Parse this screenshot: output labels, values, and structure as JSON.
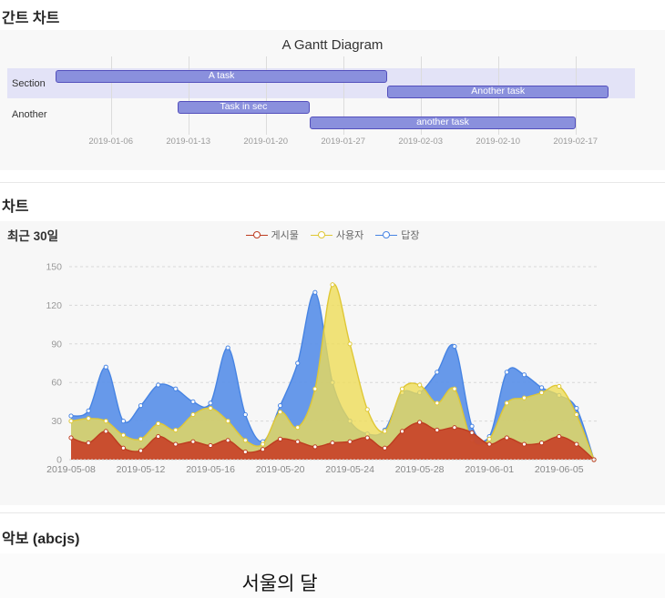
{
  "sections": {
    "gantt": {
      "heading": "간트 차트"
    },
    "chart": {
      "heading": "차트"
    },
    "sheet": {
      "heading": "악보 (abcjs)",
      "title": "서울의 달"
    }
  },
  "chart_data": [
    {
      "type": "gantt",
      "title": "A Gantt Diagram",
      "start_date": "2019-01-01",
      "axis_ticks": [
        {
          "label": "2019-01-06",
          "day": 5
        },
        {
          "label": "2019-01-13",
          "day": 12
        },
        {
          "label": "2019-01-20",
          "day": 19
        },
        {
          "label": "2019-01-27",
          "day": 26
        },
        {
          "label": "2019-02-03",
          "day": 33
        },
        {
          "label": "2019-02-10",
          "day": 40
        },
        {
          "label": "2019-02-17",
          "day": 47
        }
      ],
      "sections": [
        {
          "label": "Section",
          "tasks": [
            {
              "label": "A task",
              "start_day": 0,
              "duration_days": 30
            },
            {
              "label": "Another task",
              "start_day": 30,
              "duration_days": 20
            }
          ]
        },
        {
          "label": "Another",
          "tasks": [
            {
              "label": "Task in sec",
              "start_day": 11,
              "duration_days": 12
            },
            {
              "label": "another task",
              "start_day": 23,
              "duration_days": 24
            }
          ]
        }
      ],
      "colors": {
        "bar_fill": "#8a90dd",
        "bar_stroke": "#534fbc",
        "section_band": "#e3e3f7"
      }
    },
    {
      "type": "area",
      "title": "최근 30일",
      "x": [
        "2019-05-08",
        "2019-05-09",
        "2019-05-10",
        "2019-05-11",
        "2019-05-12",
        "2019-05-13",
        "2019-05-14",
        "2019-05-15",
        "2019-05-16",
        "2019-05-17",
        "2019-05-18",
        "2019-05-19",
        "2019-05-20",
        "2019-05-21",
        "2019-05-22",
        "2019-05-23",
        "2019-05-24",
        "2019-05-25",
        "2019-05-26",
        "2019-05-27",
        "2019-05-28",
        "2019-05-29",
        "2019-05-30",
        "2019-05-31",
        "2019-06-01",
        "2019-06-02",
        "2019-06-03",
        "2019-06-04",
        "2019-06-05",
        "2019-06-06",
        "2019-06-07"
      ],
      "series": [
        {
          "name": "게시물",
          "color": "#c8492c",
          "line": "#bd3c20",
          "fill_opacity": 0.97,
          "values": [
            17,
            13,
            22,
            9,
            7,
            18,
            12,
            14,
            11,
            15,
            6,
            8,
            16,
            14,
            10,
            13,
            14,
            17,
            9,
            22,
            29,
            23,
            25,
            21,
            12,
            17,
            12,
            13,
            18,
            12,
            0
          ]
        },
        {
          "name": "사용자",
          "color": "#eedc55",
          "line": "#dfc735",
          "fill_opacity": 0.78,
          "values": [
            30,
            32,
            30,
            19,
            16,
            28,
            23,
            35,
            40,
            30,
            15,
            12,
            37,
            25,
            55,
            136,
            90,
            39,
            22,
            55,
            58,
            44,
            55,
            15,
            16,
            44,
            48,
            52,
            57,
            35,
            0
          ]
        },
        {
          "name": "답장",
          "color": "#5f94e9",
          "line": "#4784e3",
          "fill_opacity": 0.95,
          "values": [
            34,
            38,
            72,
            30,
            42,
            58,
            55,
            45,
            44,
            87,
            35,
            14,
            42,
            75,
            130,
            60,
            30,
            20,
            23,
            52,
            52,
            68,
            88,
            26,
            18,
            68,
            66,
            56,
            50,
            40,
            0
          ]
        }
      ],
      "ylim": [
        0,
        150
      ],
      "yticks": [
        0,
        30,
        60,
        90,
        120,
        150
      ],
      "xticks": [
        {
          "label": "2019-05-08",
          "index": 0
        },
        {
          "label": "2019-05-12",
          "index": 4
        },
        {
          "label": "2019-05-16",
          "index": 8
        },
        {
          "label": "2019-05-20",
          "index": 12
        },
        {
          "label": "2019-05-24",
          "index": 16
        },
        {
          "label": "2019-05-28",
          "index": 20
        },
        {
          "label": "2019-06-01",
          "index": 24
        },
        {
          "label": "2019-06-05",
          "index": 28
        }
      ],
      "legend_position": "top-center",
      "grid": "dashed"
    }
  ]
}
